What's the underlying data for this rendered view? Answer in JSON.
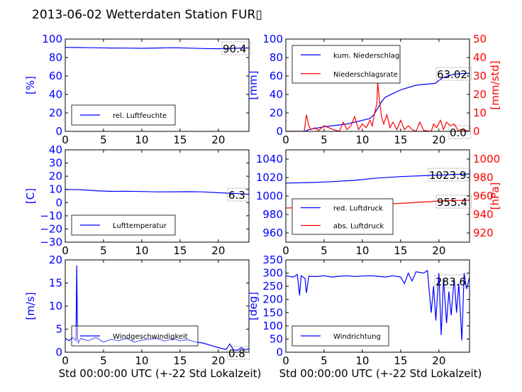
{
  "title": "2013-06-02 Wetterdaten Station FUR▯",
  "colors": {
    "blue": "#0000ff",
    "red": "#ff0000",
    "lightblue": "#7777ff",
    "black": "#000000"
  },
  "chart_data": [
    {
      "id": "humidity",
      "type": "line",
      "ylabel": "[%]",
      "ylim": [
        0,
        100
      ],
      "yticks": [
        "0",
        "20",
        "40",
        "60",
        "80",
        "100"
      ],
      "xlim": [
        0,
        24
      ],
      "xticks": [
        "0",
        "5",
        "10",
        "15",
        "20"
      ],
      "legend_placement": "lower-left",
      "series": [
        {
          "name": "rel. Luftfeuchte",
          "color": "#0000ff",
          "x": [
            0,
            2,
            4,
            6,
            8,
            10,
            12,
            14,
            16,
            18,
            20,
            22,
            24
          ],
          "y": [
            91,
            90.8,
            90.5,
            90.3,
            90.2,
            90,
            90.3,
            90.6,
            90.2,
            89.8,
            89.5,
            90,
            90.4
          ]
        }
      ],
      "annotation": "90.4"
    },
    {
      "id": "precip",
      "type": "line",
      "ylabel": "[mm]",
      "ylim": [
        0,
        100
      ],
      "yticks": [
        "0",
        "20",
        "40",
        "60",
        "80",
        "100"
      ],
      "y2label": "[mm/std]",
      "y2lim": [
        0,
        50
      ],
      "y2ticks": [
        "0",
        "10",
        "20",
        "30",
        "40",
        "50"
      ],
      "xlim": [
        0,
        24
      ],
      "xticks": [
        "0",
        "5",
        "10",
        "15",
        "20"
      ],
      "legend_placement": "upper-left",
      "series": [
        {
          "name": "kum. Niederschlag",
          "color": "#0000ff",
          "axis": "left",
          "x": [
            0,
            2.5,
            3,
            5,
            8,
            10,
            11,
            11.5,
            12,
            12.5,
            13,
            15,
            17,
            19.5,
            20.5,
            22,
            24
          ],
          "y": [
            0,
            0,
            2,
            5,
            8,
            12,
            14,
            18,
            25,
            32,
            37,
            45,
            50,
            52,
            58,
            62,
            63
          ]
        },
        {
          "name": "Niederschlagsrate",
          "color": "#ff0000",
          "axis": "right",
          "x": [
            0,
            2.4,
            2.7,
            3,
            3.3,
            3.8,
            4.3,
            5,
            5.6,
            6.2,
            7,
            7.5,
            8,
            8.5,
            9,
            9.5,
            10,
            10.5,
            11,
            11.3,
            11.6,
            11.9,
            12,
            12.2,
            12.5,
            12.8,
            13.2,
            13.6,
            14,
            14.5,
            15,
            15.5,
            16,
            16.5,
            17,
            17.5,
            18,
            19,
            19.3,
            19.7,
            20.2,
            20.6,
            21,
            21.5,
            22,
            22.5,
            23,
            24
          ],
          "y": [
            0,
            0,
            9,
            3,
            1,
            2,
            0.5,
            3,
            2,
            1,
            0,
            5,
            1,
            3,
            8,
            1,
            4,
            2,
            6,
            3,
            10,
            15,
            27,
            18,
            8,
            4,
            9,
            2,
            5,
            1,
            6,
            1,
            3,
            1,
            0,
            5,
            0.5,
            0,
            4,
            2,
            6,
            1,
            5,
            3,
            4,
            0.5,
            1,
            0
          ]
        }
      ],
      "annotations": [
        "63.02",
        "0.0"
      ]
    },
    {
      "id": "temperature",
      "type": "line",
      "ylabel": "[C]",
      "ylim": [
        -30,
        40
      ],
      "yticks": [
        "−30",
        "−20",
        "−10",
        "0",
        "10",
        "20",
        "30",
        "40"
      ],
      "xlim": [
        0,
        24
      ],
      "xticks": [
        "0",
        "5",
        "10",
        "15",
        "20"
      ],
      "legend_placement": "lower-left",
      "series": [
        {
          "name": "Lufttemperatur",
          "color": "#0000ff",
          "x": [
            0,
            2,
            4,
            6,
            8,
            10,
            12,
            14,
            16,
            18,
            20,
            22,
            24
          ],
          "y": [
            10,
            9.8,
            9,
            8.5,
            8.6,
            8.4,
            8.1,
            8.2,
            8.3,
            8.1,
            7.5,
            7,
            6.3
          ]
        }
      ],
      "annotation": "6.3"
    },
    {
      "id": "pressure",
      "type": "line",
      "ylabel": "",
      "ylim": [
        950,
        1050
      ],
      "yticks": [
        "960",
        "980",
        "1000",
        "1020",
        "1040"
      ],
      "y2label": "[hPa]",
      "y2lim": [
        910,
        1010
      ],
      "y2ticks": [
        "920",
        "940",
        "960",
        "980",
        "1000"
      ],
      "xlim": [
        0,
        24
      ],
      "xticks": [
        "0",
        "5",
        "10",
        "15",
        "20"
      ],
      "legend_placement": "lower-left",
      "series": [
        {
          "name": "red. Luftdruck",
          "color": "#0000ff",
          "axis": "left",
          "x": [
            0,
            3,
            6,
            9,
            12,
            15,
            18,
            21,
            24
          ],
          "y": [
            1014,
            1014.5,
            1015.5,
            1017,
            1019.5,
            1021,
            1022,
            1023,
            1023.9
          ]
        },
        {
          "name": "abs. Luftdruck",
          "color": "#ff0000",
          "axis": "right",
          "x": [
            0,
            3,
            6,
            9,
            12,
            15,
            18,
            21,
            24
          ],
          "y": [
            947,
            947.5,
            948,
            949,
            951,
            952,
            953.5,
            955,
            955.4
          ]
        }
      ],
      "annotations": [
        "1023.9",
        "955.4"
      ]
    },
    {
      "id": "wind",
      "type": "line",
      "ylabel": "[m/s]",
      "ylim": [
        0,
        20
      ],
      "yticks": [
        "0",
        "5",
        "10",
        "15",
        "20"
      ],
      "xlim": [
        0,
        24
      ],
      "xticks": [
        "0",
        "5",
        "10",
        "15",
        "20"
      ],
      "xlabel": "Std 00:00:00 UTC (+-22 Std Lokalzeit)",
      "legend_placement": "lower-left",
      "series": [
        {
          "name": "Windgeschwindigkeit",
          "color": "#0000ff",
          "x": [
            0,
            0.5,
            1,
            1.4,
            1.5,
            1.6,
            1.7,
            2,
            3,
            4,
            5,
            6,
            7,
            8,
            9,
            10,
            11,
            12,
            13,
            14,
            15,
            16,
            17,
            18,
            19,
            20,
            21,
            21.5,
            22,
            22.5,
            23,
            23.5,
            24
          ],
          "y": [
            3,
            2.5,
            3.2,
            2.5,
            18.8,
            3,
            2,
            3,
            2.5,
            3.2,
            2.2,
            2.8,
            2.5,
            3,
            2.2,
            2.6,
            2.8,
            3,
            2.4,
            2.9,
            2.5,
            2.7,
            2.2,
            2,
            1.5,
            1,
            0.6,
            1.8,
            0.5,
            0.4,
            1,
            0.5,
            0.8
          ]
        }
      ],
      "annotation": "0.8"
    },
    {
      "id": "direction",
      "type": "line",
      "ylabel": "[deg]",
      "ylim": [
        0,
        350
      ],
      "yticks": [
        "0",
        "50",
        "100",
        "150",
        "200",
        "250",
        "300",
        "350"
      ],
      "xlim": [
        0,
        24
      ],
      "xticks": [
        "0",
        "5",
        "10",
        "15",
        "20"
      ],
      "xlabel": "Std 00:00:00 UTC (+-22 Std Lokalzeit)",
      "legend_placement": "lower-left",
      "series": [
        {
          "name": "Windrichtung",
          "color": "#0000ff",
          "x": [
            0,
            1,
            1.5,
            1.8,
            2,
            2.5,
            2.7,
            3,
            4,
            5,
            6,
            7,
            8,
            9,
            10,
            11,
            12,
            13,
            14,
            15,
            15.5,
            16,
            16.5,
            17,
            18,
            18.5,
            19,
            19.3,
            19.6,
            20,
            20.3,
            20.6,
            21,
            21.3,
            21.6,
            22,
            22.3,
            22.6,
            23,
            23.3,
            23.6,
            24
          ],
          "y": [
            290,
            285,
            295,
            215,
            290,
            280,
            225,
            288,
            287,
            290,
            285,
            288,
            290,
            287,
            289,
            290,
            288,
            285,
            290,
            285,
            260,
            300,
            270,
            305,
            300,
            310,
            150,
            250,
            120,
            300,
            65,
            280,
            110,
            230,
            140,
            280,
            150,
            260,
            45,
            300,
            240,
            283.6
          ]
        }
      ],
      "annotation": "283.6"
    }
  ]
}
